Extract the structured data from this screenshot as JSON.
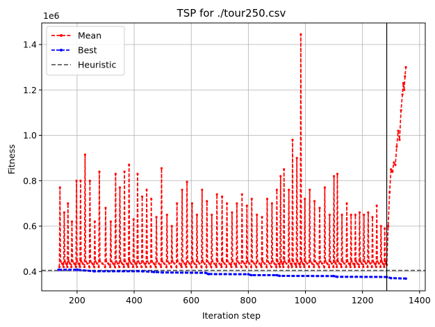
{
  "chart_data": {
    "type": "line",
    "title": "TSP for ./tour250.csv",
    "xlabel": "Iteration step",
    "ylabel": "Fitness",
    "y_offset_label": "1e6",
    "xlim": [
      76,
      1420
    ],
    "ylim": [
      315000,
      1495000
    ],
    "x_ticks": [
      200,
      400,
      600,
      800,
      1000,
      1200,
      1400
    ],
    "y_ticks": [
      400000,
      600000,
      800000,
      1000000,
      1200000,
      1400000
    ],
    "y_tick_labels": [
      "0.4",
      "0.6",
      "0.8",
      "1.0",
      "1.2",
      "1.4"
    ],
    "grid": true,
    "legend_position": "top-left",
    "heuristic_value": 405000,
    "vertical_line_x": 1285,
    "colors": {
      "mean": "#ff0000",
      "best": "#0000ff",
      "heuristic": "#404040",
      "vline": "#000000"
    },
    "series": [
      {
        "name": "Mean",
        "style": "dashed-dotted",
        "baseline": 420000,
        "spikes": [
          [
            140,
            770000
          ],
          [
            155,
            660000
          ],
          [
            168,
            700000
          ],
          [
            182,
            620000
          ],
          [
            198,
            800000
          ],
          [
            212,
            800000
          ],
          [
            228,
            915000
          ],
          [
            245,
            800000
          ],
          [
            262,
            620000
          ],
          [
            278,
            840000
          ],
          [
            300,
            680000
          ],
          [
            318,
            620000
          ],
          [
            335,
            830000
          ],
          [
            350,
            770000
          ],
          [
            366,
            840000
          ],
          [
            382,
            870000
          ],
          [
            398,
            630000
          ],
          [
            412,
            830000
          ],
          [
            428,
            730000
          ],
          [
            444,
            760000
          ],
          [
            460,
            720000
          ],
          [
            478,
            640000
          ],
          [
            496,
            855000
          ],
          [
            515,
            650000
          ],
          [
            532,
            600000
          ],
          [
            550,
            700000
          ],
          [
            568,
            760000
          ],
          [
            585,
            795000
          ],
          [
            603,
            700000
          ],
          [
            620,
            650000
          ],
          [
            638,
            760000
          ],
          [
            655,
            710000
          ],
          [
            672,
            650000
          ],
          [
            690,
            740000
          ],
          [
            708,
            730000
          ],
          [
            725,
            700000
          ],
          [
            743,
            660000
          ],
          [
            760,
            700000
          ],
          [
            778,
            740000
          ],
          [
            795,
            690000
          ],
          [
            812,
            720000
          ],
          [
            830,
            650000
          ],
          [
            848,
            640000
          ],
          [
            866,
            720000
          ],
          [
            883,
            700000
          ],
          [
            900,
            760000
          ],
          [
            913,
            820000
          ],
          [
            925,
            850000
          ],
          [
            942,
            760000
          ],
          [
            955,
            980000
          ],
          [
            970,
            900000
          ],
          [
            984,
            1445000
          ],
          [
            998,
            720000
          ],
          [
            1015,
            760000
          ],
          [
            1032,
            710000
          ],
          [
            1050,
            680000
          ],
          [
            1068,
            770000
          ],
          [
            1085,
            650000
          ],
          [
            1100,
            820000
          ],
          [
            1112,
            830000
          ],
          [
            1128,
            650000
          ],
          [
            1145,
            700000
          ],
          [
            1160,
            650000
          ],
          [
            1175,
            650000
          ],
          [
            1190,
            660000
          ],
          [
            1205,
            650000
          ],
          [
            1220,
            660000
          ],
          [
            1235,
            640000
          ],
          [
            1250,
            690000
          ],
          [
            1265,
            600000
          ],
          [
            1278,
            590000
          ]
        ],
        "tail": [
          [
            1285,
            430000
          ],
          [
            1290,
            600000
          ],
          [
            1295,
            750000
          ],
          [
            1300,
            850000
          ],
          [
            1305,
            840000
          ],
          [
            1310,
            880000
          ],
          [
            1315,
            870000
          ],
          [
            1320,
            950000
          ],
          [
            1325,
            1020000
          ],
          [
            1330,
            980000
          ],
          [
            1335,
            1110000
          ],
          [
            1340,
            1180000
          ],
          [
            1343,
            1230000
          ],
          [
            1346,
            1200000
          ],
          [
            1349,
            1260000
          ],
          [
            1352,
            1300000
          ]
        ]
      },
      {
        "name": "Best",
        "style": "dashed-dotted",
        "points": [
          [
            135,
            408000
          ],
          [
            200,
            408000
          ],
          [
            260,
            401000
          ],
          [
            430,
            401000
          ],
          [
            470,
            398000
          ],
          [
            500,
            396000
          ],
          [
            650,
            394000
          ],
          [
            660,
            389000
          ],
          [
            800,
            388000
          ],
          [
            810,
            384000
          ],
          [
            900,
            384000
          ],
          [
            910,
            381000
          ],
          [
            1100,
            380000
          ],
          [
            1110,
            377000
          ],
          [
            1285,
            376000
          ],
          [
            1300,
            371000
          ],
          [
            1352,
            369000
          ]
        ]
      },
      {
        "name": "Heuristic",
        "style": "dashed"
      }
    ]
  }
}
